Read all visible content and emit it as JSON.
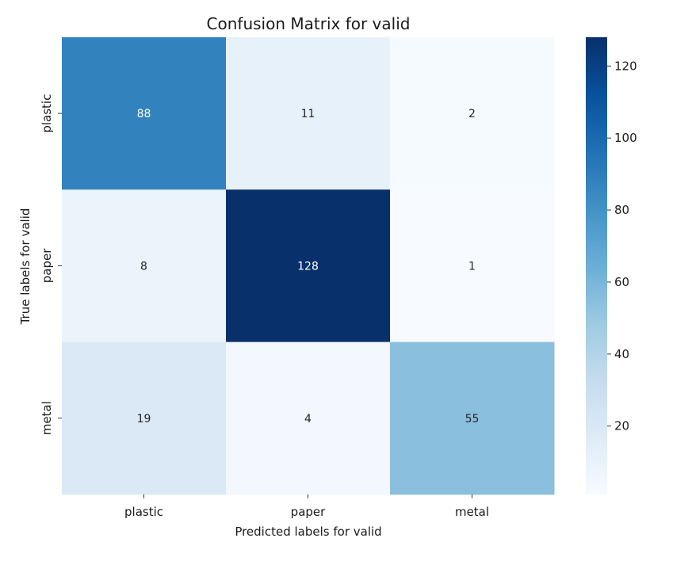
{
  "chart_data": {
    "type": "heatmap",
    "title": "Confusion Matrix for valid",
    "xlabel": "Predicted labels for valid",
    "ylabel": "True labels for valid",
    "x_categories": [
      "plastic",
      "paper",
      "metal"
    ],
    "y_categories": [
      "plastic",
      "paper",
      "metal"
    ],
    "values": [
      [
        88,
        11,
        2
      ],
      [
        8,
        128,
        1
      ],
      [
        19,
        4,
        55
      ]
    ],
    "colormap": "Blues",
    "colorbar": {
      "ticks": [
        20,
        40,
        60,
        80,
        100,
        120
      ],
      "range": [
        1,
        128
      ]
    }
  }
}
